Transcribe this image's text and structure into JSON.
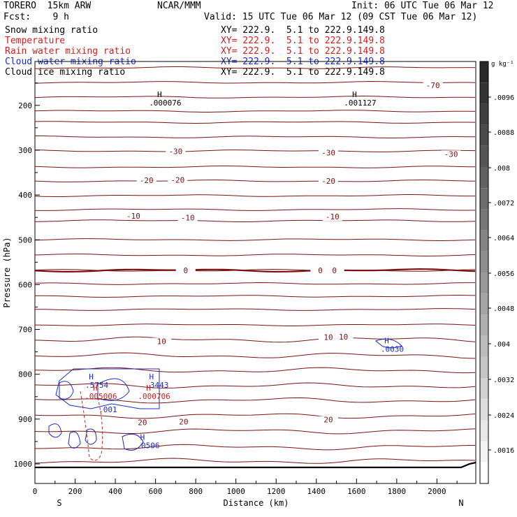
{
  "header": {
    "model": "TORERO  15km ARW",
    "org": "NCAR/MMM",
    "init": "Init: 06 UTC Tue 06 Mar 12",
    "fcst": "Fcst:    9 h",
    "valid": "Valid: 15 UTC Tue 06 Mar 12 (09 CST Tue 06 Mar 12)"
  },
  "colors": {
    "brown": "#7a1212",
    "red": "#d02020",
    "blue": "#1a2cc8",
    "black": "#000000"
  },
  "legend": [
    {
      "name": "Snow mixing ratio",
      "xy": "XY= 222.9.  5.1 to 222.9.149.8",
      "color": "#000000"
    },
    {
      "name": "Temperature",
      "xy": "XY= 222.9.  5.1 to 222.9.149.8",
      "color": "#d02020"
    },
    {
      "name": "Rain water mixing ratio",
      "xy": "XY= 222.9.  5.1 to 222.9.149.8",
      "color": "#d02020"
    },
    {
      "name": "Cloud water mixing ratio",
      "xy": "XY= 222.9.  5.1 to 222.9.149.8",
      "color": "#1a2cc8"
    },
    {
      "name": "Cloud ice mixing ratio",
      "xy": "XY= 222.9.  5.1 to 222.9.149.8",
      "color": "#000000"
    }
  ],
  "chart_data": {
    "type": "line",
    "xlabel": "Distance (km)",
    "ylabel": "Pressure (hPa)",
    "xlim": [
      0,
      2200
    ],
    "ylim": [
      1050,
      100
    ],
    "x_ticks": [
      0,
      200,
      400,
      600,
      800,
      1000,
      1200,
      1400,
      1600,
      1800,
      2000
    ],
    "y_ticks": [
      200,
      300,
      400,
      500,
      600,
      700,
      800,
      900,
      1000
    ],
    "end_labels": [
      "S",
      "N"
    ],
    "colorbar": {
      "unit": "g kg⁻¹",
      "ticks": [
        ".0096",
        ".0088",
        ".008",
        ".0072",
        ".0064",
        ".0056",
        ".0048",
        ".004",
        ".0032",
        ".0024",
        ".0016"
      ]
    },
    "isotherm_labels": [
      {
        "text": "-70",
        "x": 1980,
        "p": 160
      },
      {
        "text": "-30",
        "x": 700,
        "p": 307
      },
      {
        "text": "-30",
        "x": 1460,
        "p": 310
      },
      {
        "text": "-30",
        "x": 2070,
        "p": 313
      },
      {
        "text": "-20",
        "x": 555,
        "p": 372
      },
      {
        "text": "-20",
        "x": 710,
        "p": 371
      },
      {
        "text": "-20",
        "x": 1460,
        "p": 373
      },
      {
        "text": "-10",
        "x": 490,
        "p": 451
      },
      {
        "text": "-10",
        "x": 760,
        "p": 455
      },
      {
        "text": "-10",
        "x": 1480,
        "p": 453
      },
      {
        "text": "0",
        "x": 750,
        "p": 573
      },
      {
        "text": "0",
        "x": 1420,
        "p": 573
      },
      {
        "text": "0",
        "x": 1490,
        "p": 573
      },
      {
        "text": "10",
        "x": 630,
        "p": 731
      },
      {
        "text": "10",
        "x": 1460,
        "p": 722
      },
      {
        "text": "10",
        "x": 1535,
        "p": 721
      },
      {
        "text": "20",
        "x": 535,
        "p": 912
      },
      {
        "text": "20",
        "x": 740,
        "p": 910
      },
      {
        "text": "20",
        "x": 1460,
        "p": 906
      }
    ],
    "extrema": [
      {
        "mark": "H",
        "value": ".000076",
        "x": 620,
        "p": 200,
        "color": "#000000"
      },
      {
        "mark": "H",
        "value": ".001127",
        "x": 1590,
        "p": 200,
        "color": "#000000"
      },
      {
        "mark": "H",
        "value": ".0030",
        "x": 1750,
        "p": 750,
        "color": "#1a2cc8"
      },
      {
        "mark": "H",
        "value": ".5754",
        "x": 280,
        "p": 830,
        "color": "#1a2cc8"
      },
      {
        "mark": "H",
        "value": ".3443",
        "x": 580,
        "p": 830,
        "color": "#1a2cc8"
      },
      {
        "mark": "H",
        "value": ".005006",
        "x": 300,
        "p": 855,
        "color": "#d02020"
      },
      {
        "mark": "H",
        "value": ".000706",
        "x": 565,
        "p": 855,
        "color": "#d02020"
      },
      {
        "mark": "",
        "value": ".001",
        "x": 335,
        "p": 885,
        "color": "#1a2cc8"
      },
      {
        "mark": "H",
        "value": ".0506",
        "x": 535,
        "p": 965,
        "color": "#1a2cc8"
      }
    ]
  }
}
